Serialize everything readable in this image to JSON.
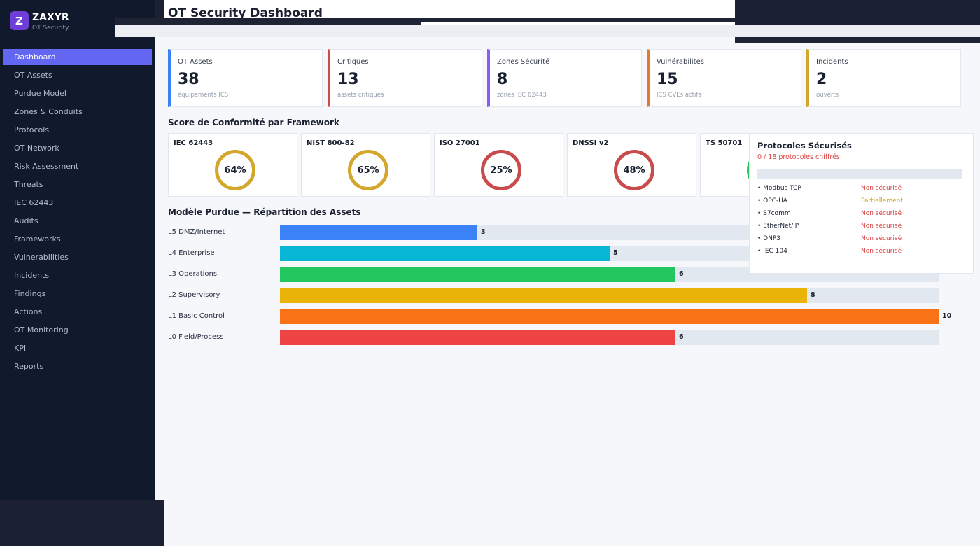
{
  "brand": {
    "logo": "Z",
    "name": "ZAXYR",
    "subtitle": "OT Security"
  },
  "sidebar": {
    "items": [
      {
        "label": "Dashboard",
        "active": true
      },
      {
        "label": "OT Assets"
      },
      {
        "label": "Purdue Model"
      },
      {
        "label": "Zones & Conduits"
      },
      {
        "label": "Protocols"
      },
      {
        "label": "OT Network"
      },
      {
        "label": "Risk Assessment"
      },
      {
        "label": "Threats"
      },
      {
        "label": "IEC 62443"
      },
      {
        "label": "Audits"
      },
      {
        "label": "Frameworks"
      },
      {
        "label": "Vulnerabilities"
      },
      {
        "label": "Incidents"
      },
      {
        "label": "Findings"
      },
      {
        "label": "Actions"
      },
      {
        "label": "OT Monitoring"
      },
      {
        "label": "KPI"
      },
      {
        "label": "Reports"
      }
    ]
  },
  "header": {
    "title": "OT Security Dashboard"
  },
  "kpis": [
    {
      "label": "OT Assets",
      "value": "38",
      "sub": "équipements ICS",
      "color": "#3b82f6"
    },
    {
      "label": "Critiques",
      "value": "13",
      "sub": "assets critiques",
      "color": "#d04a4a"
    },
    {
      "label": "Zones Sécurité",
      "value": "8",
      "sub": "zones IEC 62443",
      "color": "#8b5cf6"
    },
    {
      "label": "Vulnérabilités",
      "value": "15",
      "sub": "ICS CVEs actifs",
      "color": "#e07a2e"
    },
    {
      "label": "Incidents",
      "value": "2",
      "sub": "ouverts",
      "color": "#d4a72c"
    }
  ],
  "compliance": {
    "title": "Score de Conformité par Framework",
    "frameworks": [
      {
        "name": "IEC 62443",
        "score": "64%",
        "color": "#d4a72c"
      },
      {
        "name": "NIST 800-82",
        "score": "65%",
        "color": "#d4a72c"
      },
      {
        "name": "ISO 27001",
        "score": "25%",
        "color": "#c94b4b"
      },
      {
        "name": "DNSSI v2",
        "score": "48%",
        "color": "#c94b4b"
      },
      {
        "name": "TS 50701",
        "score": "",
        "color": "#22c55e"
      }
    ]
  },
  "protocols": {
    "title": "Protocoles Sécurisés",
    "summary": "0 / 18 protocoles chiffrés",
    "items": [
      {
        "name": "• Modbus TCP",
        "status": "Non sécurisé",
        "color": "#d94545"
      },
      {
        "name": "• OPC-UA",
        "status": "Partiellement",
        "color": "#d4a72c"
      },
      {
        "name": "• S7comm",
        "status": "Non sécurisé",
        "color": "#d94545"
      },
      {
        "name": "• EtherNet/IP",
        "status": "Non sécurisé",
        "color": "#d94545"
      },
      {
        "name": "• DNP3",
        "status": "Non sécurisé",
        "color": "#d94545"
      },
      {
        "name": "• IEC 104",
        "status": "Non sécurisé",
        "color": "#d94545"
      }
    ]
  },
  "purdue": {
    "title": "Modèle Purdue — Répartition des Assets",
    "max": 10,
    "levels": [
      {
        "label": "L5 DMZ/Internet",
        "value": 3,
        "color": "#3b82f6"
      },
      {
        "label": "L4 Enterprise",
        "value": 5,
        "color": "#06b6d4"
      },
      {
        "label": "L3 Operations",
        "value": 6,
        "color": "#22c55e"
      },
      {
        "label": "L2 Supervisory",
        "value": 8,
        "color": "#eab308"
      },
      {
        "label": "L1 Basic Control",
        "value": 10,
        "color": "#f97316"
      },
      {
        "label": "L0 Field/Process",
        "value": 6,
        "color": "#ef4444"
      }
    ]
  }
}
